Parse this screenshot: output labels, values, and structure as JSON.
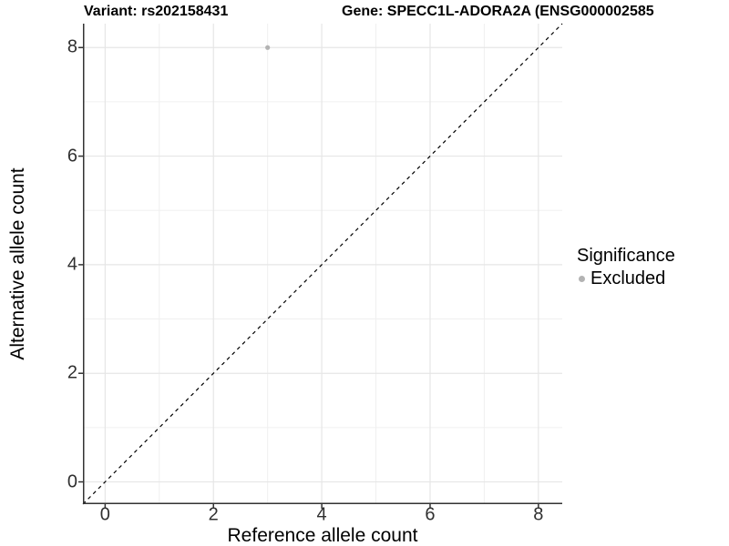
{
  "figure": {
    "title_left": "Variant: rs202158431",
    "title_right": "Gene: SPECC1L-ADORA2A (ENSG000002585"
  },
  "chart_data": {
    "type": "scatter",
    "title": "Variant: rs202158431",
    "subtitle": "Gene: SPECC1L-ADORA2A (ENSG000002585",
    "xlabel": "Reference allele count",
    "ylabel": "Alternative allele count",
    "xlim": [
      -0.41,
      8.44
    ],
    "ylim": [
      -0.41,
      8.44
    ],
    "x_ticks": [
      0,
      2,
      4,
      6,
      8
    ],
    "y_ticks": [
      0,
      2,
      4,
      6,
      8
    ],
    "x_tick_labels": [
      "0",
      "2",
      "4",
      "6",
      "8"
    ],
    "y_tick_labels": [
      "0",
      "2",
      "4",
      "6",
      "8"
    ],
    "x_minor_ticks": [
      1,
      3,
      5,
      7
    ],
    "y_minor_ticks": [
      1,
      3,
      5,
      7
    ],
    "grid": true,
    "reference_line": {
      "kind": "identity",
      "style": "dashed",
      "color": "#000000"
    },
    "series": [
      {
        "name": "Excluded",
        "color": "#b3b3b3",
        "points": [
          {
            "x": 3,
            "y": 8
          }
        ]
      }
    ],
    "legend": {
      "position": "right",
      "title": "Significance",
      "entries": [
        {
          "label": "Excluded",
          "color": "#b3b3b3"
        }
      ]
    },
    "colors": {
      "grid_major": "#e6e6e6",
      "grid_minor": "#f0f0f0",
      "axis_line": "#333333",
      "tick_text": "#303030"
    }
  }
}
